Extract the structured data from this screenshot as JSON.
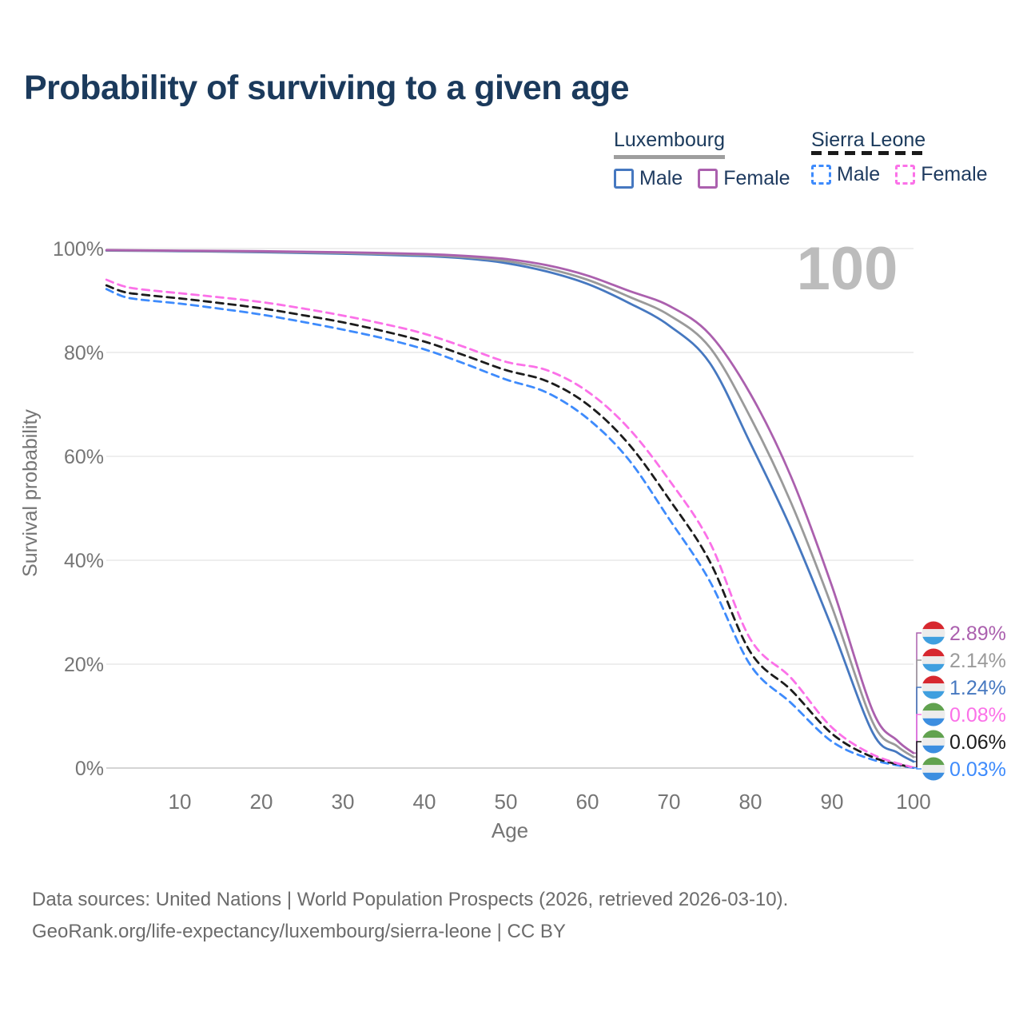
{
  "title": "Probability of surviving to a given age",
  "watermark_age": "100",
  "legend": {
    "groups": [
      {
        "name": "Luxembourg",
        "line_style": "solid",
        "underline_color": "#9e9e9e",
        "items": [
          {
            "label": "Male",
            "color": "#4678c0",
            "dashed": false
          },
          {
            "label": "Female",
            "color": "#ab60ae",
            "dashed": false
          }
        ]
      },
      {
        "name": "Sierra Leone",
        "line_style": "dashed",
        "underline_color": "#1a1a1a",
        "items": [
          {
            "label": "Male",
            "color": "#3e8bfc",
            "dashed": true
          },
          {
            "label": "Female",
            "color": "#fb71e8",
            "dashed": true
          }
        ]
      }
    ]
  },
  "chart_data": {
    "type": "line",
    "xlabel": "Age",
    "ylabel": "Survival probability",
    "xlim": [
      0,
      100
    ],
    "ylim": [
      0,
      100
    ],
    "x_ticks": [
      10,
      20,
      30,
      40,
      50,
      60,
      70,
      80,
      90,
      100
    ],
    "y_ticks": [
      {
        "value": 0,
        "label": "0%"
      },
      {
        "value": 20,
        "label": "20%"
      },
      {
        "value": 40,
        "label": "40%"
      },
      {
        "value": 60,
        "label": "60%"
      },
      {
        "value": 80,
        "label": "80%"
      },
      {
        "value": 100,
        "label": "100%"
      }
    ],
    "grid": "horizontal-only",
    "legend_position": "top-right",
    "series": [
      {
        "name": "Luxembourg Female",
        "country": "Luxembourg",
        "sex": "Female",
        "color": "#ab60ae",
        "dashed": false,
        "flag": "luxembourg",
        "end_label": "2.89%",
        "end_value": 2.89,
        "points": [
          [
            1,
            99.7
          ],
          [
            10,
            99.6
          ],
          [
            20,
            99.5
          ],
          [
            30,
            99.3
          ],
          [
            40,
            98.95
          ],
          [
            45,
            98.6
          ],
          [
            50,
            98.0
          ],
          [
            55,
            96.8
          ],
          [
            60,
            94.8
          ],
          [
            65,
            91.9
          ],
          [
            70,
            89.0
          ],
          [
            75,
            83.5
          ],
          [
            80,
            72.0
          ],
          [
            85,
            56.0
          ],
          [
            90,
            35.0
          ],
          [
            95,
            11.0
          ],
          [
            98,
            5.3
          ],
          [
            100,
            2.89
          ]
        ]
      },
      {
        "name": "Luxembourg Both sexes",
        "country": "Luxembourg",
        "sex": "Both",
        "color": "#9a9a9a",
        "dashed": false,
        "flag": "luxembourg",
        "end_label": "2.14%",
        "end_value": 2.14,
        "points": [
          [
            1,
            99.65
          ],
          [
            10,
            99.55
          ],
          [
            20,
            99.4
          ],
          [
            30,
            99.15
          ],
          [
            40,
            98.75
          ],
          [
            45,
            98.35
          ],
          [
            50,
            97.6
          ],
          [
            55,
            96.2
          ],
          [
            60,
            94.0
          ],
          [
            65,
            90.8
          ],
          [
            70,
            87.2
          ],
          [
            75,
            81.0
          ],
          [
            80,
            67.5
          ],
          [
            85,
            51.0
          ],
          [
            90,
            31.0
          ],
          [
            95,
            8.8
          ],
          [
            98,
            4.2
          ],
          [
            100,
            2.14
          ]
        ]
      },
      {
        "name": "Luxembourg Male",
        "country": "Luxembourg",
        "sex": "Male",
        "color": "#4678c0",
        "dashed": false,
        "flag": "luxembourg",
        "end_label": "1.24%",
        "end_value": 1.24,
        "points": [
          [
            1,
            99.6
          ],
          [
            10,
            99.5
          ],
          [
            20,
            99.3
          ],
          [
            30,
            99.0
          ],
          [
            40,
            98.55
          ],
          [
            45,
            98.1
          ],
          [
            50,
            97.2
          ],
          [
            55,
            95.6
          ],
          [
            60,
            93.2
          ],
          [
            65,
            89.6
          ],
          [
            70,
            85.2
          ],
          [
            75,
            78.0
          ],
          [
            80,
            62.5
          ],
          [
            85,
            46.0
          ],
          [
            90,
            27.0
          ],
          [
            95,
            6.8
          ],
          [
            98,
            3.0
          ],
          [
            100,
            1.24
          ]
        ]
      },
      {
        "name": "Sierra Leone Female",
        "country": "Sierra Leone",
        "sex": "Female",
        "color": "#fb71e8",
        "dashed": true,
        "flag": "sierra-leone",
        "end_label": "0.08%",
        "end_value": 0.08,
        "points": [
          [
            1,
            94.0
          ],
          [
            3,
            92.8
          ],
          [
            5,
            92.2
          ],
          [
            10,
            91.4
          ],
          [
            15,
            90.6
          ],
          [
            20,
            89.7
          ],
          [
            25,
            88.5
          ],
          [
            30,
            87.1
          ],
          [
            35,
            85.5
          ],
          [
            40,
            83.6
          ],
          [
            45,
            81.0
          ],
          [
            50,
            78.2
          ],
          [
            55,
            76.6
          ],
          [
            60,
            72.5
          ],
          [
            65,
            65.5
          ],
          [
            70,
            55.5
          ],
          [
            75,
            43.5
          ],
          [
            80,
            24.8
          ],
          [
            85,
            17.3
          ],
          [
            90,
            7.8
          ],
          [
            95,
            2.6
          ],
          [
            100,
            0.08
          ]
        ]
      },
      {
        "name": "Sierra Leone Both sexes",
        "country": "Sierra Leone",
        "sex": "Both",
        "color": "#1c1c1c",
        "dashed": true,
        "flag": "sierra-leone",
        "end_label": "0.06%",
        "end_value": 0.06,
        "points": [
          [
            1,
            92.9
          ],
          [
            3,
            91.7
          ],
          [
            5,
            91.2
          ],
          [
            10,
            90.4
          ],
          [
            15,
            89.5
          ],
          [
            20,
            88.5
          ],
          [
            25,
            87.2
          ],
          [
            30,
            85.8
          ],
          [
            35,
            84.1
          ],
          [
            40,
            82.1
          ],
          [
            45,
            79.4
          ],
          [
            50,
            76.6
          ],
          [
            55,
            74.5
          ],
          [
            60,
            70.0
          ],
          [
            65,
            62.5
          ],
          [
            70,
            51.8
          ],
          [
            75,
            39.8
          ],
          [
            80,
            22.3
          ],
          [
            85,
            15.0
          ],
          [
            90,
            6.6
          ],
          [
            95,
            2.1
          ],
          [
            100,
            0.06
          ]
        ]
      },
      {
        "name": "Sierra Leone Male",
        "country": "Sierra Leone",
        "sex": "Male",
        "color": "#3e8bfc",
        "dashed": true,
        "flag": "sierra-leone",
        "end_label": "0.03%",
        "end_value": 0.03,
        "points": [
          [
            1,
            92.2
          ],
          [
            3,
            90.8
          ],
          [
            5,
            90.2
          ],
          [
            10,
            89.4
          ],
          [
            15,
            88.4
          ],
          [
            20,
            87.3
          ],
          [
            25,
            85.9
          ],
          [
            30,
            84.4
          ],
          [
            35,
            82.7
          ],
          [
            40,
            80.6
          ],
          [
            45,
            77.8
          ],
          [
            50,
            74.8
          ],
          [
            55,
            72.3
          ],
          [
            60,
            67.3
          ],
          [
            65,
            59.5
          ],
          [
            70,
            48.0
          ],
          [
            75,
            36.0
          ],
          [
            80,
            19.8
          ],
          [
            85,
            12.5
          ],
          [
            90,
            5.1
          ],
          [
            95,
            1.6
          ],
          [
            100,
            0.03
          ]
        ]
      }
    ]
  },
  "flags": {
    "luxembourg": {
      "stripes": [
        "#d7282f",
        "#ececec",
        "#3f9fdf"
      ]
    },
    "sierra-leone": {
      "stripes": [
        "#61a24f",
        "#ececec",
        "#3c8ee0"
      ]
    }
  },
  "colors": {
    "title": "#1b3a5c",
    "axis_text": "#757575",
    "gridline": "#e9e9e9",
    "zero_gridline": "#c6c6c6",
    "watermark": "#bcbcbc",
    "footer_text": "#6b6b6b"
  },
  "footer": {
    "line1": "Data sources: United Nations | World Population Prospects (2026, retrieved 2026-03-10).",
    "line2": "GeoRank.org/life-expectancy/luxembourg/sierra-leone | CC BY"
  }
}
